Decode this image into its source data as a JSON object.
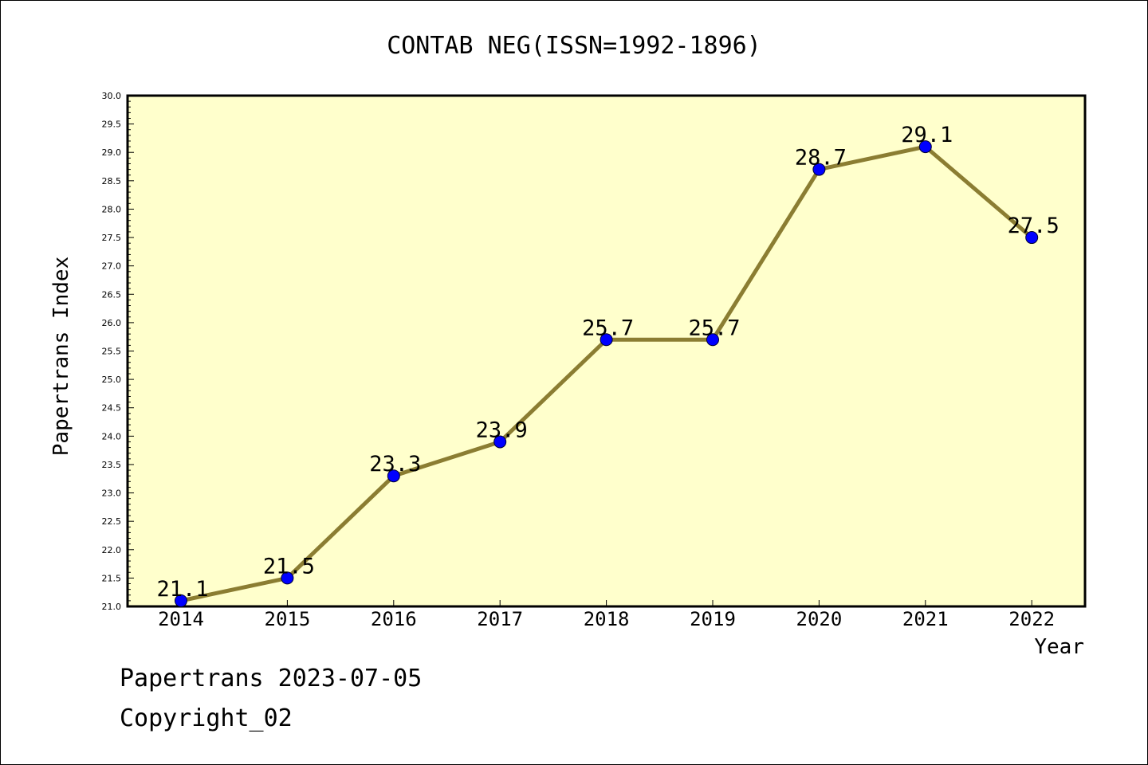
{
  "chart_data": {
    "type": "line",
    "title": "CONTAB NEG(ISSN=1992-1896)",
    "xlabel": "Year",
    "ylabel": "Papertrans Index",
    "categories": [
      "2014",
      "2015",
      "2016",
      "2017",
      "2018",
      "2019",
      "2020",
      "2021",
      "2022"
    ],
    "values": [
      21.1,
      21.5,
      23.3,
      23.9,
      25.7,
      25.7,
      28.7,
      29.1,
      27.5
    ],
    "data_labels": [
      "21.1",
      "21.5",
      "23.3",
      "23.9",
      "25.7",
      "25.7",
      "28.7",
      "29.1",
      "27.5"
    ],
    "ylim": [
      21.0,
      30.0
    ],
    "yticks": [
      "21.0",
      "21.5",
      "22.0",
      "22.5",
      "23.0",
      "23.5",
      "24.0",
      "24.5",
      "25.0",
      "25.5",
      "26.0",
      "26.5",
      "27.0",
      "27.5",
      "28.0",
      "28.5",
      "29.0",
      "29.5",
      "30.0"
    ],
    "grid": false,
    "colors": {
      "line": "#8b7d32",
      "marker": "#0000ff",
      "plot_background": "#ffffcc"
    }
  },
  "footer": {
    "line1": "Papertrans 2023-07-05",
    "line2": "Copyright_02"
  }
}
